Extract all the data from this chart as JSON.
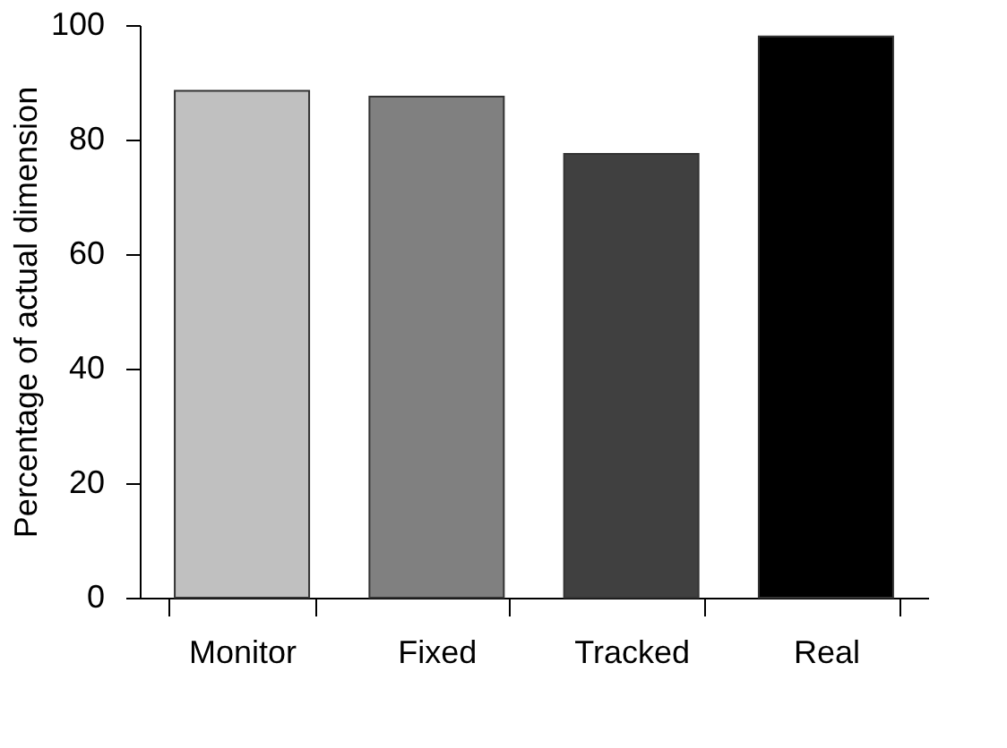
{
  "chart_data": {
    "type": "bar",
    "ylabel": "Percentage of actual dimension",
    "categories": [
      "Monitor",
      "Fixed",
      "Tracked",
      "Real"
    ],
    "values": [
      88.5,
      87.5,
      77.5,
      98
    ],
    "colors": [
      "#c0c0c0",
      "#808080",
      "#404040",
      "#000000"
    ],
    "ylim": [
      0,
      100
    ],
    "yticks": [
      0,
      20,
      40,
      60,
      80,
      100
    ],
    "grid": false
  }
}
